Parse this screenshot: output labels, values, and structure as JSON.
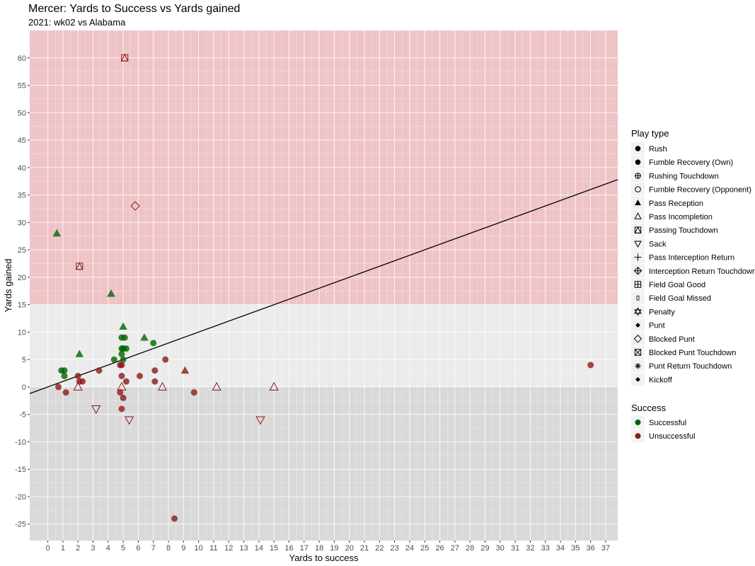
{
  "title": "Mercer: Yards to Success vs Yards gained",
  "subtitle": "2021: wk02 vs Alabama",
  "chart_data": {
    "type": "scatter",
    "xlabel": "Yards to success",
    "ylabel": "Yards gained",
    "xlim": [
      -1.2,
      37.8
    ],
    "ylim": [
      -28,
      65
    ],
    "x_ticks": [
      0,
      1,
      2,
      3,
      4,
      5,
      6,
      7,
      8,
      9,
      10,
      11,
      12,
      13,
      14,
      15,
      16,
      17,
      18,
      19,
      20,
      21,
      22,
      23,
      24,
      25,
      26,
      27,
      28,
      29,
      30,
      31,
      32,
      33,
      34,
      35,
      36,
      37
    ],
    "y_ticks": [
      -25,
      -20,
      -15,
      -10,
      -5,
      0,
      5,
      10,
      15,
      20,
      25,
      30,
      35,
      40,
      45,
      50,
      55,
      60
    ],
    "bands": [
      {
        "from": 15,
        "to": 65,
        "color": "#efc4c6"
      },
      {
        "from": 0,
        "to": 15,
        "color": "#ebebeb"
      },
      {
        "from": -28,
        "to": 0,
        "color": "#d9d9d9"
      }
    ],
    "reference_line": {
      "x0": -1.2,
      "y0": -1.2,
      "slope": 1.0
    },
    "colors": {
      "Successful": "#006400",
      "Unsuccessful": "#8b1a1a"
    },
    "points": [
      {
        "x": 0.6,
        "y": 28,
        "type": "Pass Reception",
        "success": "Successful"
      },
      {
        "x": 4.2,
        "y": 17,
        "type": "Pass Reception",
        "success": "Successful"
      },
      {
        "x": 2.1,
        "y": 6,
        "type": "Pass Reception",
        "success": "Successful"
      },
      {
        "x": 5.0,
        "y": 11,
        "type": "Pass Reception",
        "success": "Successful"
      },
      {
        "x": 6.4,
        "y": 9,
        "type": "Pass Reception",
        "success": "Successful"
      },
      {
        "x": 9.1,
        "y": 3,
        "type": "Pass Reception",
        "success": "Unsuccessful"
      },
      {
        "x": 0.9,
        "y": 3,
        "type": "Rush",
        "success": "Successful"
      },
      {
        "x": 1.1,
        "y": 3,
        "type": "Rush",
        "success": "Successful"
      },
      {
        "x": 1.1,
        "y": 2,
        "type": "Rush",
        "success": "Successful"
      },
      {
        "x": 4.4,
        "y": 5,
        "type": "Rush",
        "success": "Successful"
      },
      {
        "x": 4.9,
        "y": 9,
        "type": "Rush",
        "success": "Successful"
      },
      {
        "x": 5.1,
        "y": 9,
        "type": "Rush",
        "success": "Successful"
      },
      {
        "x": 4.9,
        "y": 7,
        "type": "Rush",
        "success": "Successful"
      },
      {
        "x": 5.0,
        "y": 7,
        "type": "Rush",
        "success": "Successful"
      },
      {
        "x": 5.2,
        "y": 7,
        "type": "Rush",
        "success": "Successful"
      },
      {
        "x": 4.9,
        "y": 6,
        "type": "Rush",
        "success": "Successful"
      },
      {
        "x": 5.0,
        "y": 5,
        "type": "Rush",
        "success": "Successful"
      },
      {
        "x": 7.0,
        "y": 8,
        "type": "Rush",
        "success": "Successful"
      },
      {
        "x": 0.7,
        "y": 0,
        "type": "Rush",
        "success": "Unsuccessful"
      },
      {
        "x": 1.2,
        "y": -1,
        "type": "Rush",
        "success": "Unsuccessful"
      },
      {
        "x": 2.0,
        "y": 2,
        "type": "Rush",
        "success": "Unsuccessful"
      },
      {
        "x": 2.1,
        "y": 1,
        "type": "Rush",
        "success": "Unsuccessful"
      },
      {
        "x": 2.3,
        "y": 1,
        "type": "Rush",
        "success": "Unsuccessful"
      },
      {
        "x": 3.4,
        "y": 3,
        "type": "Rush",
        "success": "Unsuccessful"
      },
      {
        "x": 4.8,
        "y": 4,
        "type": "Rush",
        "success": "Unsuccessful"
      },
      {
        "x": 4.9,
        "y": 4,
        "type": "Rush",
        "success": "Unsuccessful"
      },
      {
        "x": 4.9,
        "y": 2,
        "type": "Rush",
        "success": "Unsuccessful"
      },
      {
        "x": 4.8,
        "y": -1,
        "type": "Rush",
        "success": "Unsuccessful"
      },
      {
        "x": 5.0,
        "y": -2,
        "type": "Rush",
        "success": "Unsuccessful"
      },
      {
        "x": 4.9,
        "y": -4,
        "type": "Rush",
        "success": "Unsuccessful"
      },
      {
        "x": 5.2,
        "y": 1,
        "type": "Rush",
        "success": "Unsuccessful"
      },
      {
        "x": 6.1,
        "y": 2,
        "type": "Rush",
        "success": "Unsuccessful"
      },
      {
        "x": 7.1,
        "y": 3,
        "type": "Rush",
        "success": "Unsuccessful"
      },
      {
        "x": 7.1,
        "y": 1,
        "type": "Rush",
        "success": "Unsuccessful"
      },
      {
        "x": 7.8,
        "y": 5,
        "type": "Rush",
        "success": "Unsuccessful"
      },
      {
        "x": 8.4,
        "y": -24,
        "type": "Rush",
        "success": "Unsuccessful"
      },
      {
        "x": 9.7,
        "y": -1,
        "type": "Rush",
        "success": "Unsuccessful"
      },
      {
        "x": 36.0,
        "y": 4,
        "type": "Rush",
        "success": "Unsuccessful"
      },
      {
        "x": 2.0,
        "y": 0,
        "type": "Pass Incompletion",
        "success": "Unsuccessful"
      },
      {
        "x": 4.9,
        "y": 0,
        "type": "Pass Incompletion",
        "success": "Unsuccessful"
      },
      {
        "x": 7.6,
        "y": 0,
        "type": "Pass Incompletion",
        "success": "Unsuccessful"
      },
      {
        "x": 11.2,
        "y": 0,
        "type": "Pass Incompletion",
        "success": "Unsuccessful"
      },
      {
        "x": 15.0,
        "y": 0,
        "type": "Pass Incompletion",
        "success": "Unsuccessful"
      },
      {
        "x": 3.2,
        "y": -4,
        "type": "Sack",
        "success": "Unsuccessful"
      },
      {
        "x": 5.4,
        "y": -6,
        "type": "Sack",
        "success": "Unsuccessful"
      },
      {
        "x": 14.1,
        "y": -6,
        "type": "Sack",
        "success": "Unsuccessful"
      },
      {
        "x": 5.1,
        "y": 60,
        "type": "Passing Touchdown",
        "success": "Unsuccessful"
      },
      {
        "x": 2.1,
        "y": 22,
        "type": "Passing Touchdown",
        "success": "Unsuccessful"
      },
      {
        "x": 5.8,
        "y": 33,
        "type": "Blocked Punt",
        "success": "Unsuccessful"
      }
    ],
    "legend_play_type": {
      "title": "Play type",
      "items": [
        {
          "label": "Rush",
          "shape": "filled-circle"
        },
        {
          "label": "Fumble Recovery (Own)",
          "shape": "filled-circle"
        },
        {
          "label": "Rushing Touchdown",
          "shape": "circle-plus"
        },
        {
          "label": "Fumble Recovery (Opponent)",
          "shape": "open-circle"
        },
        {
          "label": "Pass Reception",
          "shape": "filled-triangle"
        },
        {
          "label": "Pass Incompletion",
          "shape": "open-triangle"
        },
        {
          "label": "Passing Touchdown",
          "shape": "square-triangle"
        },
        {
          "label": "Sack",
          "shape": "open-triangle-down"
        },
        {
          "label": "Pass Interception Return",
          "shape": "plus"
        },
        {
          "label": "Interception Return Touchdown",
          "shape": "diamond-plus"
        },
        {
          "label": "Field Goal Good",
          "shape": "square-plus"
        },
        {
          "label": "Field Goal Missed",
          "shape": "small-rect"
        },
        {
          "label": "Penalty",
          "shape": "star-of-david"
        },
        {
          "label": "Punt",
          "shape": "filled-diamond-small"
        },
        {
          "label": "Blocked Punt",
          "shape": "open-diamond"
        },
        {
          "label": "Blocked Punt Touchdown",
          "shape": "square-x"
        },
        {
          "label": "Punt Return Touchdown",
          "shape": "asterisk"
        },
        {
          "label": "Kickoff",
          "shape": "filled-diamond-small"
        }
      ]
    },
    "legend_success": {
      "title": "Success",
      "items": [
        {
          "label": "Successful",
          "color": "#006400"
        },
        {
          "label": "Unsuccessful",
          "color": "#8b1a1a"
        }
      ]
    }
  }
}
